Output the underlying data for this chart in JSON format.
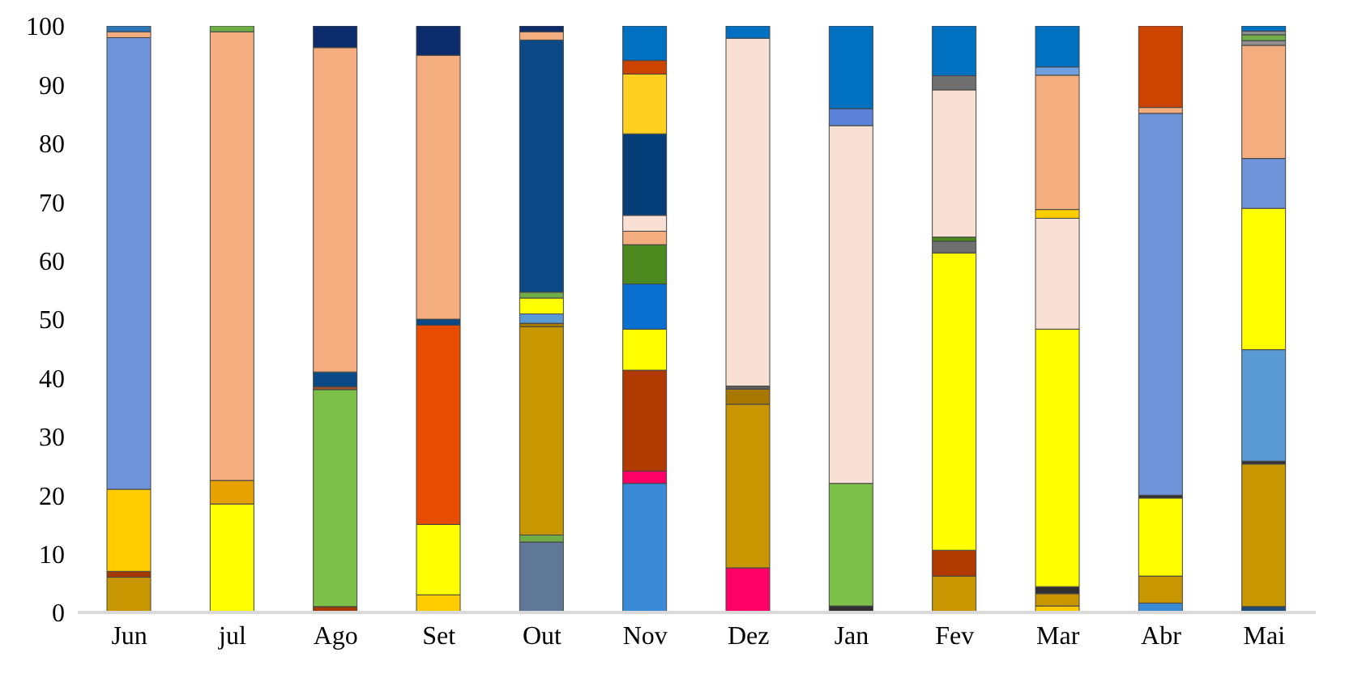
{
  "chart_data": {
    "type": "bar",
    "stacked": true,
    "categories": [
      "Jun",
      "jul",
      "Ago",
      "Set",
      "Out",
      "Nov",
      "Dez",
      "Jan",
      "Fev",
      "Mar",
      "Abr",
      "Mai"
    ],
    "ylim": [
      0,
      100
    ],
    "yticks": [
      0,
      10,
      20,
      30,
      40,
      50,
      60,
      70,
      80,
      90,
      100
    ],
    "series": [
      {
        "values": [
          6,
          18.5,
          1,
          3,
          12,
          22,
          7.6,
          1.1,
          6.2,
          1.1,
          1.6,
          1
        ],
        "colors": [
          "#c89600",
          "#ffff00",
          "#a33a00",
          "#ffcc00",
          "#607898",
          "#3a8ad8",
          "#ff0066",
          "#303030",
          "#c89600",
          "#ffcc00",
          "#3a8ad8",
          "#1f4e79"
        ]
      },
      {
        "values": [
          1,
          4,
          37,
          12,
          1.2,
          2.1,
          27.9,
          20.9,
          4.4,
          2.1,
          4.6,
          24.3
        ],
        "colors": [
          "#a33a00",
          "#e8a200",
          "#7cc04a",
          "#ffff00",
          "#70ad47",
          "#ff0066",
          "#c89600",
          "#7cc04a",
          "#b03a00",
          "#c89600",
          "#c89600",
          "#c89600"
        ]
      },
      {
        "values": [
          14,
          76.5,
          0.5,
          34,
          35.5,
          17.2,
          2.6,
          61,
          50.7,
          1.2,
          13.3,
          0.5
        ],
        "colors": [
          "#ffcc00",
          "#f4ad7e",
          "#a0522d",
          "#e84c00",
          "#c89600",
          "#b03a00",
          "#a87800",
          "#f8e0d4",
          "#ffff00",
          "#303030",
          "#ffff00",
          "#303030"
        ]
      },
      {
        "values": [
          77,
          1,
          2.5,
          1,
          0.6,
          7,
          0.5,
          2.9,
          2,
          43.9,
          0.5,
          19
        ],
        "colors": [
          "#6f93d8",
          "#70ad47",
          "#0b4a86",
          "#0b4a86",
          "#a87800",
          "#ffff00",
          "#606060",
          "#5b82d8",
          "#707070",
          "#ffff00",
          "#303030",
          "#5b9bd5"
        ]
      },
      {
        "values": [
          1,
          null,
          55.3,
          45,
          1.6,
          7.7,
          59.3,
          14.1,
          0.7,
          18.9,
          65.1,
          24.1
        ],
        "colors": [
          "#f4ad7e",
          null,
          "#f4ad7e",
          "#f4ad7e",
          "#5b9bd5",
          "#0a70d0",
          "#f8e0d4",
          "#0070c0",
          "#4c8a20",
          "#f8e0d4",
          "#6f93d8",
          "#ffff00"
        ]
      },
      {
        "values": [
          1,
          null,
          3.7,
          5,
          2.7,
          6.7,
          2.1,
          null,
          25.1,
          1.5,
          1,
          8.5
        ],
        "colors": [
          "#2e75b6",
          null,
          "#0c2c6b",
          "#0c2c6b",
          "#ffff00",
          "#4c8a20",
          "#0070c0",
          null,
          "#f8e0d4",
          "#ffcc00",
          "#f4ad7e",
          "#6f93d8"
        ]
      },
      {
        "values": [
          null,
          null,
          null,
          null,
          1,
          2.3,
          null,
          null,
          2.4,
          22.9,
          13.9,
          19.3
        ],
        "colors": [
          null,
          null,
          null,
          null,
          "#70ad47",
          "#f4ad7e",
          null,
          null,
          "#707070",
          "#f4ad7e",
          "#cc4400",
          "#f4ad7e"
        ]
      },
      {
        "values": [
          null,
          null,
          null,
          null,
          43,
          2.7,
          null,
          null,
          8.5,
          1.4,
          null,
          0.8
        ],
        "colors": [
          null,
          null,
          null,
          null,
          "#0b4a86",
          "#f8e0d4",
          null,
          null,
          "#0070c0",
          "#6fa0e0",
          null,
          "#909090"
        ]
      },
      {
        "values": [
          null,
          null,
          null,
          null,
          1.4,
          13.9,
          null,
          null,
          null,
          7,
          null,
          1
        ],
        "colors": [
          null,
          null,
          null,
          null,
          "#f4ad7e",
          "#063e7a",
          null,
          null,
          null,
          "#0070c0",
          null,
          "#70ad47"
        ]
      },
      {
        "values": [
          null,
          null,
          null,
          null,
          1,
          10.2,
          null,
          null,
          null,
          null,
          null,
          0.6
        ],
        "colors": [
          null,
          null,
          null,
          null,
          "#0c2c6b",
          "#ffd020",
          null,
          null,
          null,
          null,
          null,
          "#909090"
        ]
      },
      {
        "values": [
          null,
          null,
          null,
          null,
          null,
          2.3,
          null,
          null,
          null,
          null,
          null,
          0.9
        ],
        "colors": [
          null,
          null,
          null,
          null,
          null,
          "#cc4400",
          null,
          null,
          null,
          null,
          null,
          "#0070c0"
        ]
      },
      {
        "values": [
          null,
          null,
          null,
          null,
          null,
          5.9,
          null,
          null,
          null,
          null,
          null,
          null
        ],
        "colors": [
          null,
          null,
          null,
          null,
          null,
          "#0070c0",
          null,
          null,
          null,
          null,
          null,
          null
        ]
      }
    ]
  }
}
